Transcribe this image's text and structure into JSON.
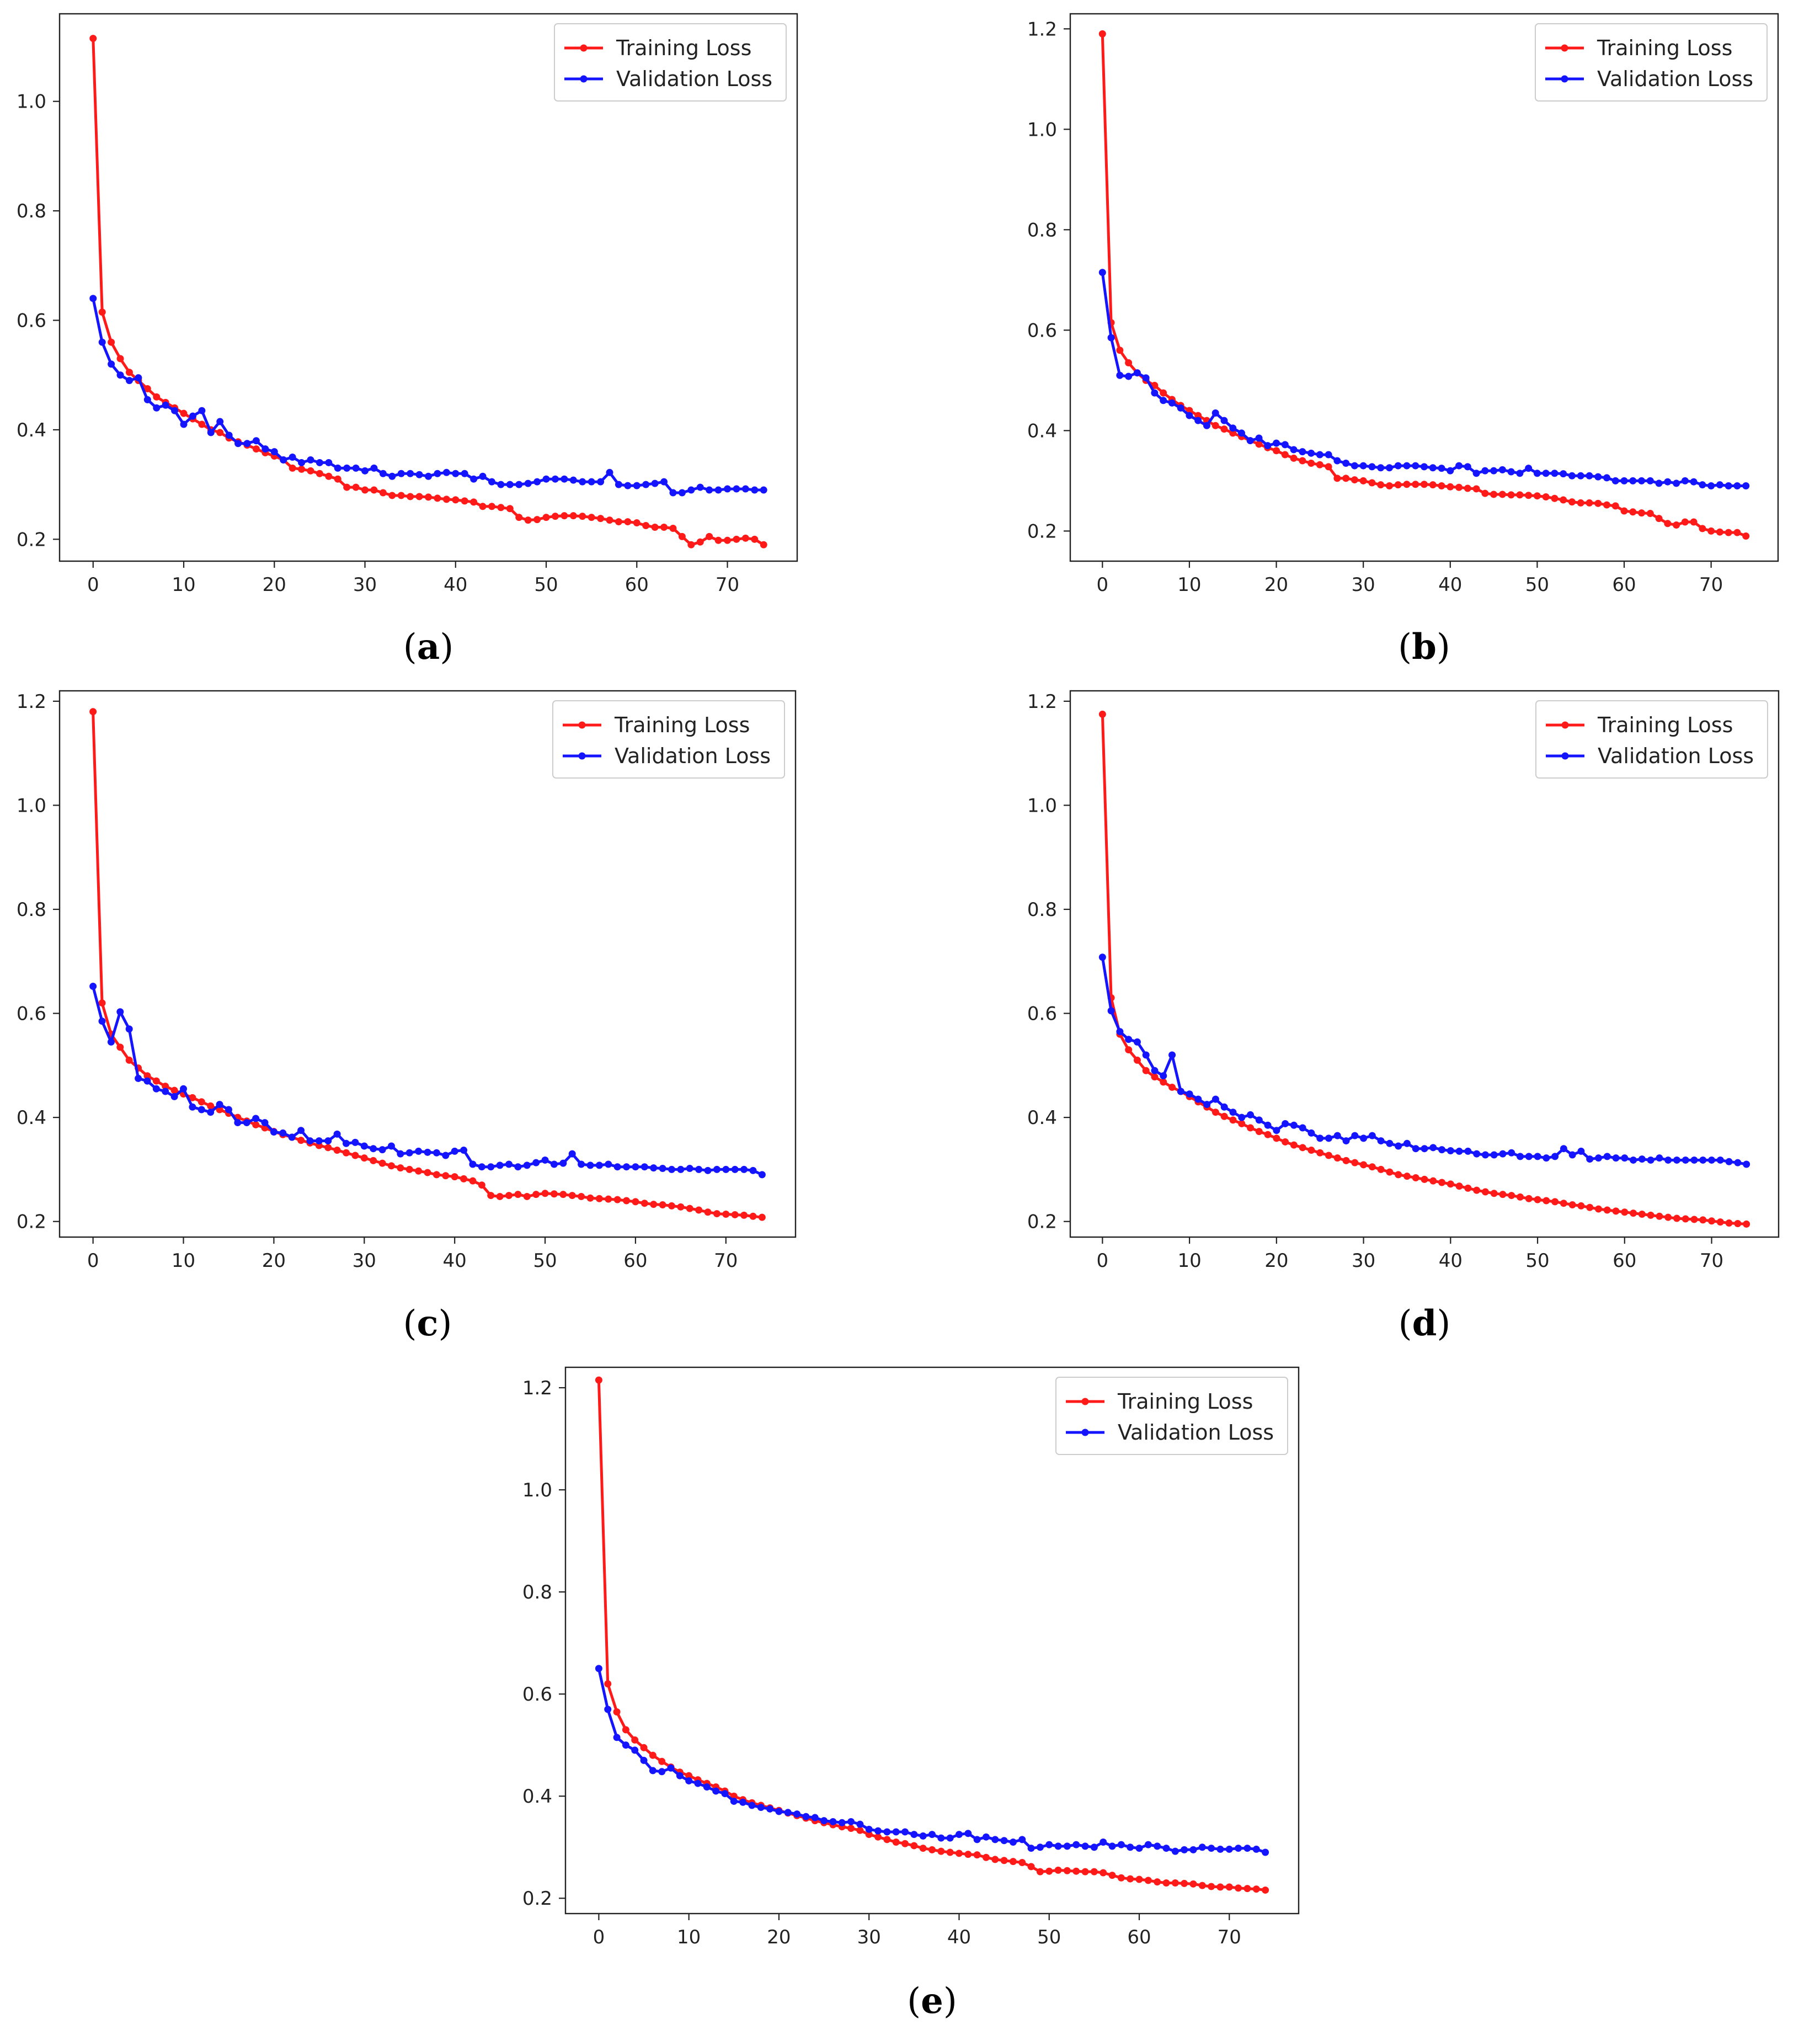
{
  "colors": {
    "training": "#ff1a1a",
    "validation": "#1414ff",
    "axis": "#222222"
  },
  "chart_data": [
    {
      "id": "a",
      "type": "line",
      "label": "a",
      "xlim": [
        -3.7,
        77.7
      ],
      "ylim": [
        0.16,
        1.16
      ],
      "xticks": [
        0,
        10,
        20,
        30,
        40,
        50,
        60,
        70
      ],
      "yticks": [
        0.2,
        0.4,
        0.6,
        0.8,
        1.0
      ],
      "legend_position": "top-right",
      "series": [
        {
          "name": "Training Loss",
          "color": "#ff1a1a",
          "values": [
            1.115,
            0.615,
            0.56,
            0.53,
            0.505,
            0.49,
            0.475,
            0.46,
            0.45,
            0.44,
            0.43,
            0.42,
            0.41,
            0.4,
            0.395,
            0.385,
            0.378,
            0.372,
            0.365,
            0.358,
            0.352,
            0.345,
            0.33,
            0.328,
            0.325,
            0.32,
            0.315,
            0.31,
            0.295,
            0.295,
            0.29,
            0.29,
            0.285,
            0.28,
            0.28,
            0.278,
            0.278,
            0.277,
            0.275,
            0.273,
            0.272,
            0.27,
            0.268,
            0.26,
            0.26,
            0.258,
            0.256,
            0.24,
            0.235,
            0.236,
            0.24,
            0.242,
            0.243,
            0.243,
            0.242,
            0.24,
            0.238,
            0.235,
            0.232,
            0.232,
            0.23,
            0.225,
            0.222,
            0.222,
            0.22,
            0.205,
            0.19,
            0.195,
            0.205,
            0.198,
            0.198,
            0.2,
            0.202,
            0.2,
            0.19
          ]
        },
        {
          "name": "Validation Loss",
          "color": "#1414ff",
          "values": [
            0.64,
            0.56,
            0.52,
            0.5,
            0.49,
            0.495,
            0.455,
            0.44,
            0.445,
            0.435,
            0.41,
            0.425,
            0.435,
            0.395,
            0.415,
            0.39,
            0.375,
            0.375,
            0.38,
            0.365,
            0.36,
            0.345,
            0.35,
            0.34,
            0.345,
            0.34,
            0.34,
            0.33,
            0.33,
            0.33,
            0.325,
            0.33,
            0.32,
            0.315,
            0.32,
            0.32,
            0.318,
            0.315,
            0.32,
            0.322,
            0.32,
            0.32,
            0.31,
            0.315,
            0.305,
            0.3,
            0.3,
            0.3,
            0.302,
            0.305,
            0.31,
            0.31,
            0.31,
            0.308,
            0.305,
            0.305,
            0.305,
            0.322,
            0.3,
            0.298,
            0.298,
            0.3,
            0.302,
            0.305,
            0.285,
            0.285,
            0.29,
            0.295,
            0.29,
            0.29,
            0.292,
            0.292,
            0.292,
            0.29,
            0.29
          ]
        }
      ]
    },
    {
      "id": "b",
      "type": "line",
      "label": "b",
      "xlim": [
        -3.7,
        77.7
      ],
      "ylim": [
        0.14,
        1.23
      ],
      "xticks": [
        0,
        10,
        20,
        30,
        40,
        50,
        60,
        70
      ],
      "yticks": [
        0.2,
        0.4,
        0.6,
        0.8,
        1.0,
        1.2
      ],
      "legend_position": "top-right",
      "series": [
        {
          "name": "Training Loss",
          "color": "#ff1a1a",
          "values": [
            1.19,
            0.615,
            0.56,
            0.535,
            0.515,
            0.5,
            0.49,
            0.475,
            0.462,
            0.45,
            0.44,
            0.43,
            0.42,
            0.41,
            0.403,
            0.395,
            0.388,
            0.38,
            0.373,
            0.366,
            0.36,
            0.352,
            0.345,
            0.34,
            0.335,
            0.332,
            0.328,
            0.305,
            0.305,
            0.302,
            0.3,
            0.296,
            0.292,
            0.29,
            0.292,
            0.293,
            0.293,
            0.293,
            0.292,
            0.29,
            0.288,
            0.287,
            0.285,
            0.284,
            0.275,
            0.273,
            0.273,
            0.272,
            0.272,
            0.271,
            0.27,
            0.268,
            0.265,
            0.262,
            0.258,
            0.256,
            0.256,
            0.255,
            0.252,
            0.25,
            0.24,
            0.238,
            0.236,
            0.235,
            0.225,
            0.215,
            0.212,
            0.218,
            0.218,
            0.205,
            0.2,
            0.198,
            0.197,
            0.197,
            0.19
          ]
        },
        {
          "name": "Validation Loss",
          "color": "#1414ff",
          "values": [
            0.715,
            0.585,
            0.51,
            0.508,
            0.515,
            0.505,
            0.475,
            0.46,
            0.455,
            0.445,
            0.43,
            0.42,
            0.41,
            0.435,
            0.42,
            0.405,
            0.395,
            0.38,
            0.385,
            0.37,
            0.375,
            0.372,
            0.362,
            0.358,
            0.355,
            0.352,
            0.352,
            0.34,
            0.335,
            0.33,
            0.33,
            0.328,
            0.326,
            0.326,
            0.33,
            0.33,
            0.33,
            0.328,
            0.326,
            0.325,
            0.32,
            0.33,
            0.328,
            0.315,
            0.32,
            0.32,
            0.322,
            0.318,
            0.315,
            0.325,
            0.315,
            0.315,
            0.315,
            0.314,
            0.31,
            0.31,
            0.31,
            0.308,
            0.306,
            0.3,
            0.3,
            0.3,
            0.3,
            0.3,
            0.295,
            0.298,
            0.295,
            0.3,
            0.298,
            0.292,
            0.29,
            0.292,
            0.29,
            0.29,
            0.29
          ]
        }
      ]
    },
    {
      "id": "c",
      "type": "line",
      "label": "c",
      "xlim": [
        -3.7,
        77.7
      ],
      "ylim": [
        0.17,
        1.22
      ],
      "xticks": [
        0,
        10,
        20,
        30,
        40,
        50,
        60,
        70
      ],
      "yticks": [
        0.2,
        0.4,
        0.6,
        0.8,
        1.0,
        1.2
      ],
      "legend_position": "top-right",
      "series": [
        {
          "name": "Training Loss",
          "color": "#ff1a1a",
          "values": [
            1.18,
            0.62,
            0.56,
            0.535,
            0.51,
            0.495,
            0.48,
            0.47,
            0.46,
            0.452,
            0.445,
            0.438,
            0.43,
            0.422,
            0.415,
            0.408,
            0.4,
            0.393,
            0.386,
            0.38,
            0.373,
            0.367,
            0.362,
            0.356,
            0.351,
            0.346,
            0.342,
            0.337,
            0.332,
            0.327,
            0.322,
            0.317,
            0.312,
            0.307,
            0.303,
            0.3,
            0.297,
            0.294,
            0.29,
            0.288,
            0.286,
            0.282,
            0.278,
            0.27,
            0.25,
            0.248,
            0.25,
            0.252,
            0.248,
            0.252,
            0.254,
            0.253,
            0.252,
            0.25,
            0.248,
            0.245,
            0.244,
            0.243,
            0.242,
            0.24,
            0.238,
            0.235,
            0.233,
            0.232,
            0.23,
            0.228,
            0.225,
            0.222,
            0.218,
            0.215,
            0.214,
            0.213,
            0.212,
            0.21,
            0.208
          ]
        },
        {
          "name": "Validation Loss",
          "color": "#1414ff",
          "values": [
            0.652,
            0.585,
            0.545,
            0.603,
            0.57,
            0.475,
            0.47,
            0.455,
            0.45,
            0.44,
            0.455,
            0.42,
            0.415,
            0.41,
            0.425,
            0.415,
            0.39,
            0.39,
            0.398,
            0.39,
            0.372,
            0.37,
            0.362,
            0.375,
            0.355,
            0.355,
            0.355,
            0.368,
            0.35,
            0.352,
            0.345,
            0.34,
            0.338,
            0.345,
            0.33,
            0.332,
            0.335,
            0.333,
            0.332,
            0.327,
            0.335,
            0.337,
            0.31,
            0.305,
            0.305,
            0.308,
            0.31,
            0.305,
            0.308,
            0.313,
            0.318,
            0.31,
            0.312,
            0.33,
            0.31,
            0.308,
            0.308,
            0.31,
            0.305,
            0.305,
            0.305,
            0.305,
            0.303,
            0.302,
            0.3,
            0.3,
            0.302,
            0.3,
            0.298,
            0.3,
            0.3,
            0.3,
            0.3,
            0.298,
            0.29
          ]
        }
      ]
    },
    {
      "id": "d",
      "type": "line",
      "label": "d",
      "xlim": [
        -3.7,
        77.7
      ],
      "ylim": [
        0.17,
        1.22
      ],
      "xticks": [
        0,
        10,
        20,
        30,
        40,
        50,
        60,
        70
      ],
      "yticks": [
        0.2,
        0.4,
        0.6,
        0.8,
        1.0,
        1.2
      ],
      "legend_position": "top-right",
      "series": [
        {
          "name": "Training Loss",
          "color": "#ff1a1a",
          "values": [
            1.175,
            0.63,
            0.56,
            0.53,
            0.51,
            0.49,
            0.478,
            0.468,
            0.458,
            0.45,
            0.44,
            0.43,
            0.42,
            0.41,
            0.402,
            0.395,
            0.388,
            0.38,
            0.373,
            0.367,
            0.36,
            0.353,
            0.347,
            0.342,
            0.337,
            0.332,
            0.327,
            0.322,
            0.317,
            0.313,
            0.309,
            0.305,
            0.3,
            0.295,
            0.29,
            0.287,
            0.284,
            0.281,
            0.278,
            0.275,
            0.272,
            0.268,
            0.264,
            0.26,
            0.257,
            0.254,
            0.252,
            0.25,
            0.247,
            0.244,
            0.242,
            0.24,
            0.238,
            0.235,
            0.232,
            0.23,
            0.227,
            0.224,
            0.222,
            0.22,
            0.218,
            0.216,
            0.214,
            0.212,
            0.21,
            0.208,
            0.206,
            0.205,
            0.204,
            0.203,
            0.201,
            0.199,
            0.197,
            0.196,
            0.195
          ]
        },
        {
          "name": "Validation Loss",
          "color": "#1414ff",
          "values": [
            0.708,
            0.605,
            0.565,
            0.55,
            0.545,
            0.52,
            0.49,
            0.48,
            0.52,
            0.45,
            0.445,
            0.435,
            0.425,
            0.435,
            0.42,
            0.41,
            0.4,
            0.405,
            0.395,
            0.385,
            0.375,
            0.388,
            0.385,
            0.38,
            0.37,
            0.36,
            0.36,
            0.365,
            0.355,
            0.365,
            0.36,
            0.365,
            0.355,
            0.35,
            0.345,
            0.35,
            0.34,
            0.34,
            0.342,
            0.338,
            0.336,
            0.335,
            0.335,
            0.33,
            0.328,
            0.328,
            0.33,
            0.332,
            0.325,
            0.325,
            0.325,
            0.322,
            0.325,
            0.34,
            0.328,
            0.335,
            0.32,
            0.322,
            0.325,
            0.322,
            0.322,
            0.318,
            0.32,
            0.318,
            0.322,
            0.318,
            0.318,
            0.318,
            0.318,
            0.318,
            0.318,
            0.318,
            0.315,
            0.313,
            0.31
          ]
        }
      ]
    },
    {
      "id": "e",
      "type": "line",
      "label": "e",
      "xlim": [
        -3.7,
        77.7
      ],
      "ylim": [
        0.17,
        1.24
      ],
      "xticks": [
        0,
        10,
        20,
        30,
        40,
        50,
        60,
        70
      ],
      "yticks": [
        0.2,
        0.4,
        0.6,
        0.8,
        1.0,
        1.2
      ],
      "legend_position": "top-right",
      "series": [
        {
          "name": "Training Loss",
          "color": "#ff1a1a",
          "values": [
            1.215,
            0.62,
            0.565,
            0.53,
            0.51,
            0.495,
            0.48,
            0.468,
            0.457,
            0.447,
            0.44,
            0.432,
            0.425,
            0.418,
            0.41,
            0.4,
            0.393,
            0.387,
            0.382,
            0.377,
            0.372,
            0.367,
            0.362,
            0.357,
            0.352,
            0.348,
            0.344,
            0.34,
            0.337,
            0.333,
            0.325,
            0.32,
            0.315,
            0.31,
            0.307,
            0.303,
            0.298,
            0.295,
            0.292,
            0.29,
            0.288,
            0.286,
            0.285,
            0.28,
            0.276,
            0.274,
            0.272,
            0.27,
            0.262,
            0.252,
            0.253,
            0.255,
            0.254,
            0.253,
            0.252,
            0.252,
            0.25,
            0.245,
            0.24,
            0.238,
            0.237,
            0.235,
            0.232,
            0.23,
            0.23,
            0.229,
            0.228,
            0.225,
            0.223,
            0.222,
            0.222,
            0.22,
            0.219,
            0.218,
            0.216
          ]
        },
        {
          "name": "Validation Loss",
          "color": "#1414ff",
          "values": [
            0.65,
            0.57,
            0.515,
            0.5,
            0.49,
            0.47,
            0.45,
            0.448,
            0.455,
            0.44,
            0.43,
            0.425,
            0.418,
            0.41,
            0.405,
            0.39,
            0.388,
            0.382,
            0.378,
            0.375,
            0.37,
            0.368,
            0.365,
            0.36,
            0.358,
            0.352,
            0.35,
            0.348,
            0.35,
            0.345,
            0.335,
            0.332,
            0.33,
            0.33,
            0.33,
            0.325,
            0.322,
            0.325,
            0.318,
            0.318,
            0.325,
            0.327,
            0.315,
            0.32,
            0.315,
            0.313,
            0.31,
            0.315,
            0.298,
            0.3,
            0.305,
            0.302,
            0.302,
            0.305,
            0.302,
            0.3,
            0.31,
            0.302,
            0.305,
            0.3,
            0.298,
            0.305,
            0.302,
            0.298,
            0.292,
            0.295,
            0.295,
            0.3,
            0.298,
            0.296,
            0.296,
            0.298,
            0.298,
            0.296,
            0.29
          ]
        }
      ]
    }
  ]
}
